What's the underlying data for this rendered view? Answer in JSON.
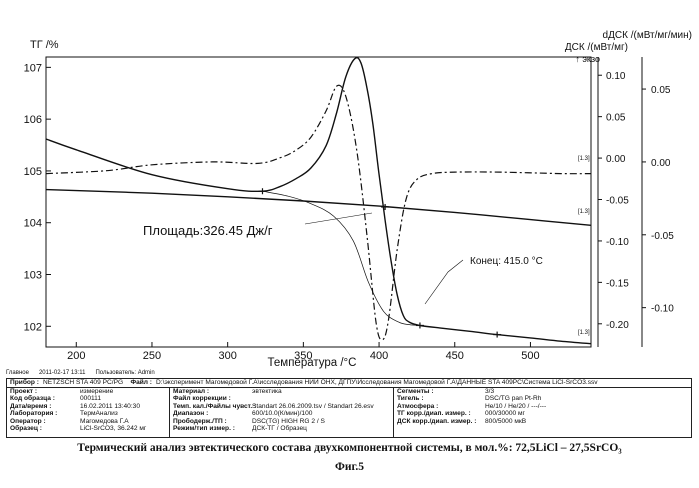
{
  "chart_data": {
    "type": "line",
    "title": "",
    "xlabel": "Температура /°C",
    "x_ticks": [
      200,
      250,
      300,
      350,
      400,
      450,
      500
    ],
    "xlim": [
      180,
      540
    ],
    "left_axis": {
      "label": "ТГ /%",
      "ylim": [
        101.6,
        107.2
      ],
      "ticks": [
        102,
        103,
        104,
        105,
        106,
        107
      ]
    },
    "right_axis_1": {
      "label": "ДСК /(мВт/мг)",
      "arrow_label": "↑ экзо",
      "ylim": [
        -0.228,
        0.122
      ],
      "ticks": [
        0.1,
        0.05,
        0.0,
        -0.05,
        -0.1,
        -0.15,
        -0.2
      ],
      "tick_labels": [
        "0.10",
        "0.05",
        "0.00",
        "-0.05",
        "-0.10",
        "-0.15",
        "-0.20"
      ]
    },
    "right_axis_2": {
      "label": "dДСК /(мВт/мг/мин)",
      "ylim": [
        -0.127,
        0.072
      ],
      "ticks": [
        0.05,
        0.0,
        -0.05,
        -0.1
      ],
      "tick_labels": [
        "0.05",
        "0.00",
        "-0.05",
        "-0.10"
      ]
    },
    "series": [
      {
        "name": "ТГ",
        "axis": "left",
        "style": "solid",
        "x": [
          180,
          200,
          250,
          300,
          350,
          400,
          450,
          500,
          540
        ],
        "y": [
          104.64,
          104.62,
          104.57,
          104.5,
          104.42,
          104.32,
          104.2,
          104.06,
          103.95
        ]
      },
      {
        "name": "ДСК",
        "axis": "right_1",
        "style": "solid",
        "x": [
          180,
          200,
          250,
          300,
          323,
          335,
          345,
          355,
          365,
          372,
          378,
          384,
          388,
          392,
          396,
          400,
          404,
          408,
          412,
          416,
          420,
          427,
          440,
          460,
          478,
          500,
          520,
          540
        ],
        "y": [
          0.023,
          0.01,
          -0.02,
          -0.037,
          -0.04,
          -0.034,
          -0.025,
          -0.012,
          0.015,
          0.055,
          0.098,
          0.12,
          0.115,
          0.085,
          0.04,
          -0.02,
          -0.075,
          -0.125,
          -0.165,
          -0.19,
          -0.198,
          -0.202,
          -0.205,
          -0.209,
          -0.213,
          -0.217,
          -0.221,
          -0.224
        ]
      },
      {
        "name": "dДСК",
        "axis": "right_2",
        "style": "dash-dot",
        "x": [
          180,
          220,
          250,
          290,
          320,
          335,
          345,
          355,
          365,
          372,
          378,
          385,
          392,
          398,
          402,
          406,
          412,
          418,
          425,
          435,
          450,
          480,
          520,
          540
        ],
        "y": [
          -0.008,
          -0.006,
          -0.002,
          0.0,
          -0.001,
          0.003,
          0.008,
          0.017,
          0.035,
          0.052,
          0.045,
          0.01,
          -0.05,
          -0.11,
          -0.122,
          -0.11,
          -0.06,
          -0.025,
          -0.012,
          -0.008,
          -0.007,
          -0.007,
          -0.008,
          -0.008
        ]
      },
      {
        "name": "Базовая линия пика",
        "axis": "right_1",
        "style": "thin",
        "x": [
          323,
          340,
          355,
          370,
          383,
          393,
          403,
          413,
          420,
          427
        ],
        "y": [
          -0.04,
          -0.046,
          -0.055,
          -0.07,
          -0.1,
          -0.15,
          -0.185,
          -0.198,
          -0.201,
          -0.202
        ]
      }
    ],
    "markers": [
      {
        "series": "ДСК",
        "x": 323,
        "y": -0.04
      },
      {
        "series": "ДСК",
        "x": 427,
        "y": -0.202
      },
      {
        "series": "ДСК",
        "x": 478,
        "y": -0.213
      },
      {
        "series": "ДСК",
        "x": 404,
        "y": -0.059
      }
    ],
    "curve_tags": [
      "[1.3]",
      "[1.3]",
      "[1.3]"
    ],
    "annotations": [
      {
        "label": "Площадь:",
        "value": "326.45 Дж/г"
      },
      {
        "label": "Конец:",
        "value": "415.0 °C"
      }
    ]
  },
  "status_bar": {
    "host": "Главное",
    "datetime": "2011-02-17 13:11",
    "user": "Пользователь: Admin"
  },
  "info": {
    "device_label": "Прибор :",
    "device": "NETZSCH STA 409 PC/PG",
    "file_label": "Файл :",
    "file": "D:\\эксперимент Магомедовой Г.А\\исследования НИИ ОНХ, ДГПУ\\Исследования Магомедовой Г.А\\ДАННЫЕ STA 409PC\\Система LiCl-SrCO3.ssv",
    "col1": [
      {
        "k": "Проект :",
        "v": "измерение"
      },
      {
        "k": "Код образца :",
        "v": "000111"
      },
      {
        "k": "Дата/время :",
        "v": "16.02.2011 13:40:30"
      },
      {
        "k": "Лаборатория :",
        "v": "ТермАнализ"
      },
      {
        "k": "Оператор :",
        "v": "Магомедова Г.А"
      },
      {
        "k": "Образец :",
        "v": "LiCl-SrCO3, 36.242 мг"
      }
    ],
    "col2": [
      {
        "k": "Материал :",
        "v": "эвтектика"
      },
      {
        "k": "Файл коррекции :",
        "v": ""
      },
      {
        "k": "Темп. кал./Файлы чувст. :",
        "v": "Standart 26.06.2009.tsv / Standart 26.esv"
      },
      {
        "k": "Диапазон :",
        "v": "600/10.0(К/мин)/100"
      },
      {
        "k": "Прободерж./ТП :",
        "v": "DSC(TG) HIGH RG 2 / S"
      },
      {
        "k": "Режим/тип измер. :",
        "v": "ДСК-ТГ / Образец"
      }
    ],
    "col3": [
      {
        "k": "Сегменты :",
        "v": "3/3"
      },
      {
        "k": "Тигель :",
        "v": "DSC/TG pan Pt-Rh"
      },
      {
        "k": "Атмосфера :",
        "v": "He/10 / He/20 / ---/---"
      },
      {
        "k": "ТГ корр./диап. измер. :",
        "v": "000/30000 мг"
      },
      {
        "k": "ДСК корр./диап. измер. :",
        "v": "800/5000 мкВ"
      }
    ]
  },
  "caption": {
    "line1": "Термический анализ эвтектического состава двухкомпонентной системы, в мол.%:  72,5LiCl – 27,5SrCO₃",
    "line2": "Фиг.5"
  }
}
